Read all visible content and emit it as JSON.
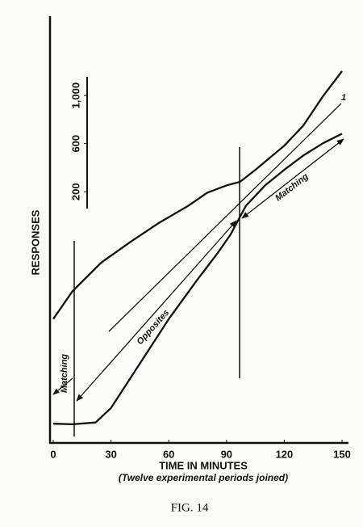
{
  "chart_data": {
    "type": "line",
    "y_label": "RESPONSES",
    "x_label": "TIME IN MINUTES",
    "x_sublabel": "(Twelve experimental periods joined)",
    "caption": "FIG. 14",
    "xlim": [
      -2,
      153
    ],
    "xticks": [
      0,
      30,
      60,
      90,
      120,
      150
    ],
    "ylim": [
      0,
      3500
    ],
    "scale_bar": [
      200,
      600,
      {
        "value": 1000,
        "label": "1,000"
      }
    ],
    "color": "#111111",
    "series": [
      {
        "x": [
          0,
          10,
          25,
          40,
          55,
          70,
          80,
          90,
          97,
          105,
          120,
          130,
          140,
          150
        ],
        "values": [
          1030,
          1260,
          1500,
          1670,
          1830,
          1970,
          2080,
          2140,
          2170,
          2270,
          2470,
          2640,
          2880,
          3090
        ]
      },
      {
        "x": [
          0,
          10,
          22,
          30,
          45,
          60,
          75,
          85,
          92,
          100,
          110,
          120,
          130,
          140,
          150
        ],
        "values": [
          160,
          155,
          170,
          290,
          660,
          1030,
          1360,
          1570,
          1730,
          1970,
          2140,
          2270,
          2390,
          2490,
          2570
        ]
      }
    ],
    "annotations": [
      "Matching",
      "Opposites",
      "Matching",
      "1"
    ]
  }
}
